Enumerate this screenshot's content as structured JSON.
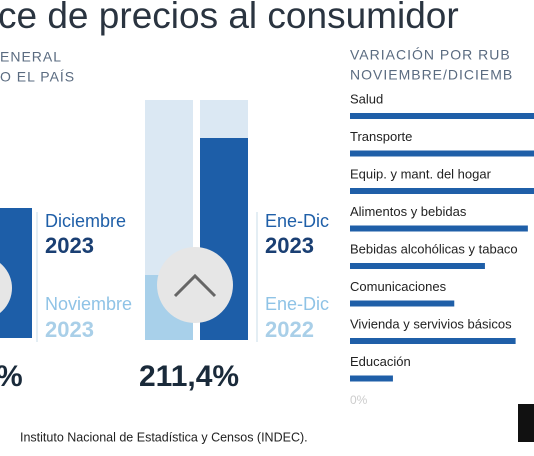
{
  "header": {
    "title": "ce de precios al consumidor",
    "left_subtitle": [
      "ENERAL",
      "O EL PAÍS"
    ],
    "right_subtitle": [
      "VARIACIÓN POR RUB",
      "NOVIEMBRE/DICIEMB"
    ]
  },
  "monthly": {
    "value": "%",
    "current": {
      "label": "Diciembre",
      "year": "2023"
    },
    "previous": {
      "label": "Noviembre",
      "year": "2023"
    }
  },
  "annual": {
    "value": "211,4%",
    "current": {
      "label": "Ene-Dic",
      "year": "2023"
    },
    "previous": {
      "label": "Ene-Dic",
      "year": "2022"
    }
  },
  "rubros": {
    "categories": [
      "Salud",
      "Transporte",
      "Equip. y mant. del hogar",
      "Alimentos y bebidas",
      "Bebidas alcohólicas y tabaco",
      "Comunicaciones",
      "Vivienda y servivios básicos",
      "Educación"
    ],
    "values": [
      32,
      31,
      30,
      29,
      22,
      17,
      27,
      7
    ],
    "xlim": [
      0,
      30
    ],
    "axis_label": "0%",
    "color": "#1f5fa8"
  },
  "footer": "Instituto Nacional de Estadística y Censos (INDEC)."
}
